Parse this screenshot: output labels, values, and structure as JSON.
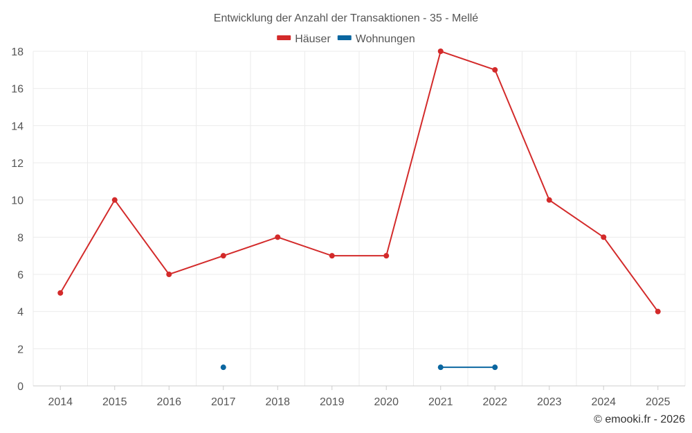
{
  "chart_data": {
    "type": "line",
    "title": "Entwicklung der Anzahl der Transaktionen - 35 - Mellé",
    "categories": [
      "2014",
      "2015",
      "2016",
      "2017",
      "2018",
      "2019",
      "2020",
      "2021",
      "2022",
      "2023",
      "2024",
      "2025"
    ],
    "series": [
      {
        "name": "Häuser",
        "color": "#d32a2a",
        "values": [
          5,
          10,
          6,
          7,
          8,
          7,
          7,
          18,
          17,
          10,
          8,
          4
        ]
      },
      {
        "name": "Wohnungen",
        "color": "#0a66a0",
        "values": [
          null,
          null,
          null,
          1,
          null,
          null,
          null,
          1,
          1,
          null,
          null,
          null
        ]
      }
    ],
    "ylim": [
      0,
      18
    ],
    "yticks": [
      "0",
      "2",
      "4",
      "6",
      "8",
      "10",
      "12",
      "14",
      "16",
      "18"
    ],
    "grid": true,
    "legend_position": "top-center"
  },
  "credit": "© emooki.fr - 2026"
}
